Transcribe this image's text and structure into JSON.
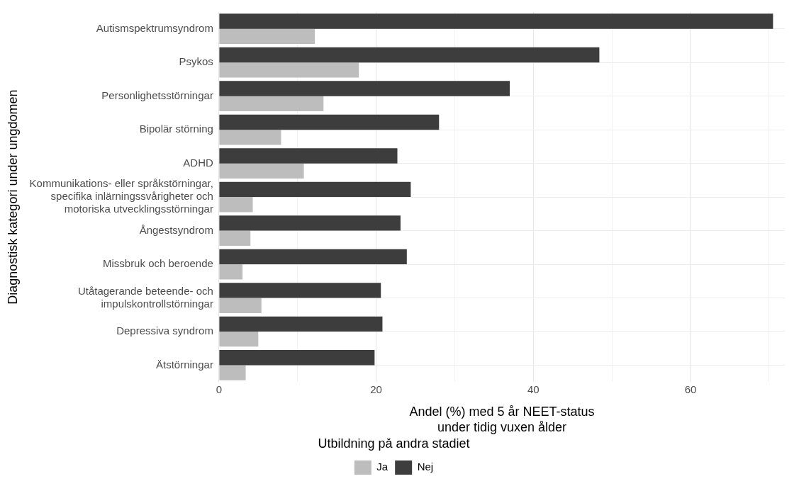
{
  "chart_data": {
    "type": "bar",
    "orientation": "horizontal",
    "ylabel": "Diagnostisk kategori under ungdomen",
    "xlabel": "Andel (%) med 5 år NEET-status\nunder tidig vuxen ålder",
    "legend_title": "Utbildning på andra stadiet",
    "legend": "bottom",
    "grid": true,
    "categories": [
      "Autismspektrumsyndrom",
      "Psykos",
      "Personlighetsstörningar",
      "Bipolär störning",
      "ADHD",
      "Kommunikations- eller språkstörningar,\nspecifika inlärningssvårigheter och\nmotoriska utvecklingsstörningar",
      "Ångestsyndrom",
      "Missbruk och beroende",
      "Utåtagerande beteende- och\nimpulskontrollstörningar",
      "Depressiva syndrom",
      "Ätstörningar"
    ],
    "series": [
      {
        "name": "Ja",
        "color": "#bdbdbd",
        "values": [
          12.2,
          17.8,
          13.3,
          7.9,
          10.8,
          4.3,
          4.0,
          3.0,
          5.4,
          5.0,
          3.4
        ]
      },
      {
        "name": "Nej",
        "color": "#3d3d3d",
        "values": [
          70.5,
          48.4,
          37.0,
          28.0,
          22.7,
          24.4,
          23.1,
          23.9,
          20.6,
          20.8,
          19.8
        ]
      }
    ],
    "xlim": [
      0,
      72
    ],
    "xticks": [
      0,
      {
        "value": 10,
        "label": null
      },
      20,
      {
        "value": 30,
        "label": null
      },
      40,
      {
        "value": 50,
        "label": null
      },
      60,
      {
        "value": 70,
        "label": null
      }
    ]
  }
}
